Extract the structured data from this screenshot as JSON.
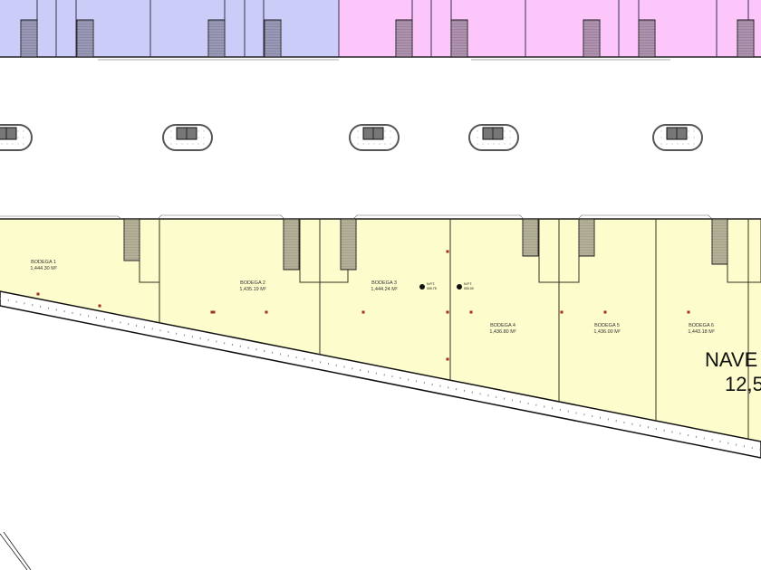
{
  "colors": {
    "block_purple": "#ccccf8",
    "block_pink": "#fcc6fa",
    "bodega_fill": "#fcfccc",
    "stair_fill": "#a09a80",
    "wall": "#3a3020"
  },
  "bodegas": [
    {
      "name": "BODEGA 1",
      "area": "1,444.30 M²"
    },
    {
      "name": "BODEGA 2",
      "area": "1,435.19 M²"
    },
    {
      "name": "BODEGA 3",
      "area": "1,444.24 M²"
    },
    {
      "name": "BODEGA 4",
      "area": "1,436.80 M²"
    },
    {
      "name": "BODEGA 5",
      "area": "1,436.00 M²"
    },
    {
      "name": "BODEGA 6",
      "area": "1,443.18 M²"
    }
  ],
  "nave": {
    "title": "NAVE",
    "area_partial": "12,5"
  },
  "level_markers": [
    {
      "label": "N.P.T.",
      "value": "000.75"
    },
    {
      "label": "N.P.T.",
      "value": "000.00"
    }
  ]
}
